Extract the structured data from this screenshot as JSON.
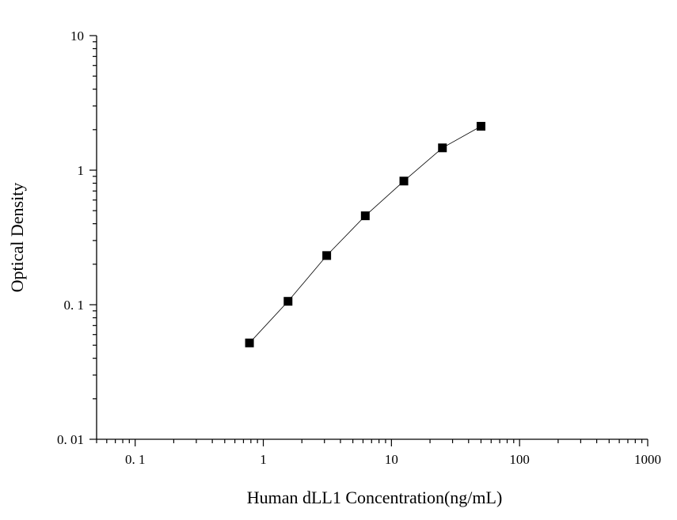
{
  "chart_data": {
    "type": "scatter",
    "title": "",
    "xlabel": "Human dLL1 Concentration(ng/mL)",
    "ylabel": "Optical Density",
    "x_scale": "log",
    "y_scale": "log",
    "xlim": [
      0.05,
      1000
    ],
    "ylim": [
      0.01,
      10
    ],
    "x_ticks": [
      {
        "value": 0.1,
        "label": "0. 1"
      },
      {
        "value": 1,
        "label": "1"
      },
      {
        "value": 10,
        "label": "10"
      },
      {
        "value": 100,
        "label": "100"
      },
      {
        "value": 1000,
        "label": "1000"
      }
    ],
    "y_ticks": [
      {
        "value": 0.01,
        "label": "0. 01"
      },
      {
        "value": 0.1,
        "label": "0. 1"
      },
      {
        "value": 1,
        "label": "1"
      },
      {
        "value": 10,
        "label": "10"
      }
    ],
    "grid": false,
    "legend": "none",
    "marker": "square",
    "color": "#000000",
    "series": [
      {
        "x": [
          0.78,
          1.56,
          3.125,
          6.25,
          12.5,
          25,
          50
        ],
        "y": [
          0.052,
          0.106,
          0.232,
          0.458,
          0.83,
          1.465,
          2.12
        ]
      }
    ]
  }
}
